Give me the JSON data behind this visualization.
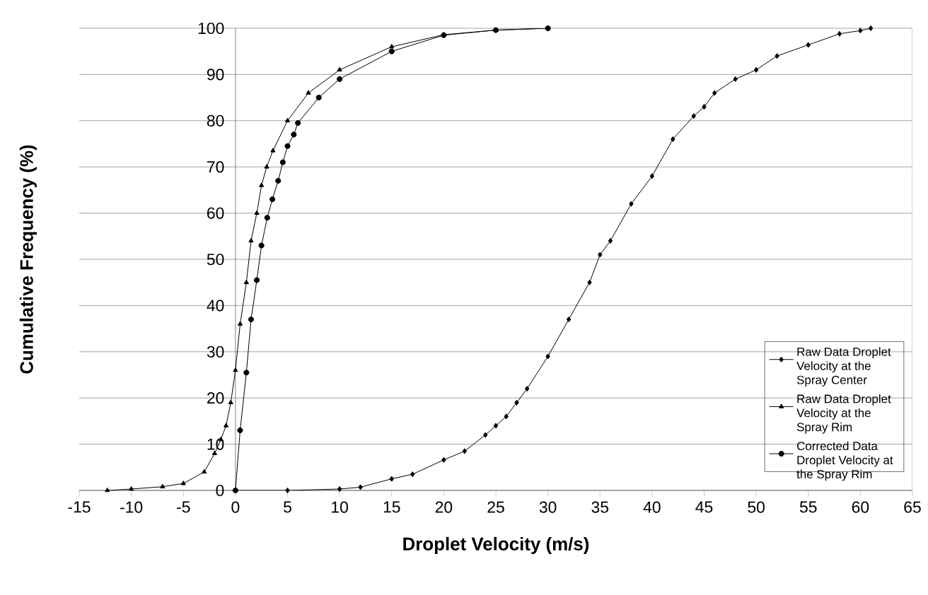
{
  "chart_data": {
    "type": "line",
    "xlabel": "Droplet Velocity (m/s)",
    "ylabel": "Cumulative Frequency (%)",
    "xlim": [
      -15,
      65
    ],
    "xticks": [
      -15,
      -10,
      -5,
      0,
      5,
      10,
      15,
      20,
      25,
      30,
      35,
      40,
      45,
      50,
      55,
      60,
      65
    ],
    "ylim": [
      0,
      100
    ],
    "yticks": [
      0,
      10,
      20,
      30,
      40,
      50,
      60,
      70,
      80,
      90,
      100
    ],
    "grid": "y",
    "legend": "right",
    "line_style": "solid",
    "series": [
      {
        "name": "Raw Data Droplet Velocity at the Spray Center",
        "color": "#000000",
        "marker": "diamond",
        "x": [
          0,
          5,
          10,
          12,
          15,
          17,
          20,
          22,
          24,
          25,
          26,
          27,
          28,
          30,
          32,
          34,
          35,
          36,
          38,
          40,
          42,
          44,
          45,
          46,
          48,
          50,
          52,
          55,
          58,
          60,
          61
        ],
        "values": [
          0,
          0,
          0.3,
          0.7,
          2.5,
          3.5,
          6.6,
          8.5,
          12,
          14,
          16,
          19,
          22,
          29,
          37,
          45,
          51,
          54,
          62,
          68,
          76,
          81,
          83,
          86,
          89,
          91,
          94,
          96.4,
          98.8,
          99.5,
          100
        ]
      },
      {
        "name": "Raw Data Droplet Velocity at the Spray Rim",
        "color": "#000000",
        "marker": "triangle",
        "x": [
          -12.3,
          -10,
          -7,
          -5,
          -3,
          -2,
          -1.4,
          -0.9,
          -0.45,
          0,
          0.45,
          1.05,
          1.5,
          2.05,
          2.5,
          3,
          3.6,
          5,
          7,
          10,
          15,
          20,
          25,
          30
        ],
        "values": [
          0,
          0.3,
          0.8,
          1.5,
          4,
          8,
          11,
          14,
          19,
          26,
          36,
          45,
          54,
          60,
          66,
          70,
          73.5,
          80,
          86,
          91,
          96,
          98.6,
          99.6,
          100
        ]
      },
      {
        "name": "Corrected Data Droplet Velocity at the Spray Rim",
        "color": "#000000",
        "marker": "circle",
        "x": [
          0,
          0.45,
          1.05,
          1.5,
          2.05,
          2.5,
          3.05,
          3.55,
          4.1,
          4.55,
          5,
          5.6,
          6,
          8,
          10,
          15,
          20,
          25,
          30
        ],
        "values": [
          0,
          13,
          25.5,
          37,
          45.5,
          53,
          59,
          63,
          67,
          71,
          74.5,
          77,
          79.5,
          85,
          89,
          95,
          98.5,
          99.6,
          100
        ]
      }
    ]
  }
}
